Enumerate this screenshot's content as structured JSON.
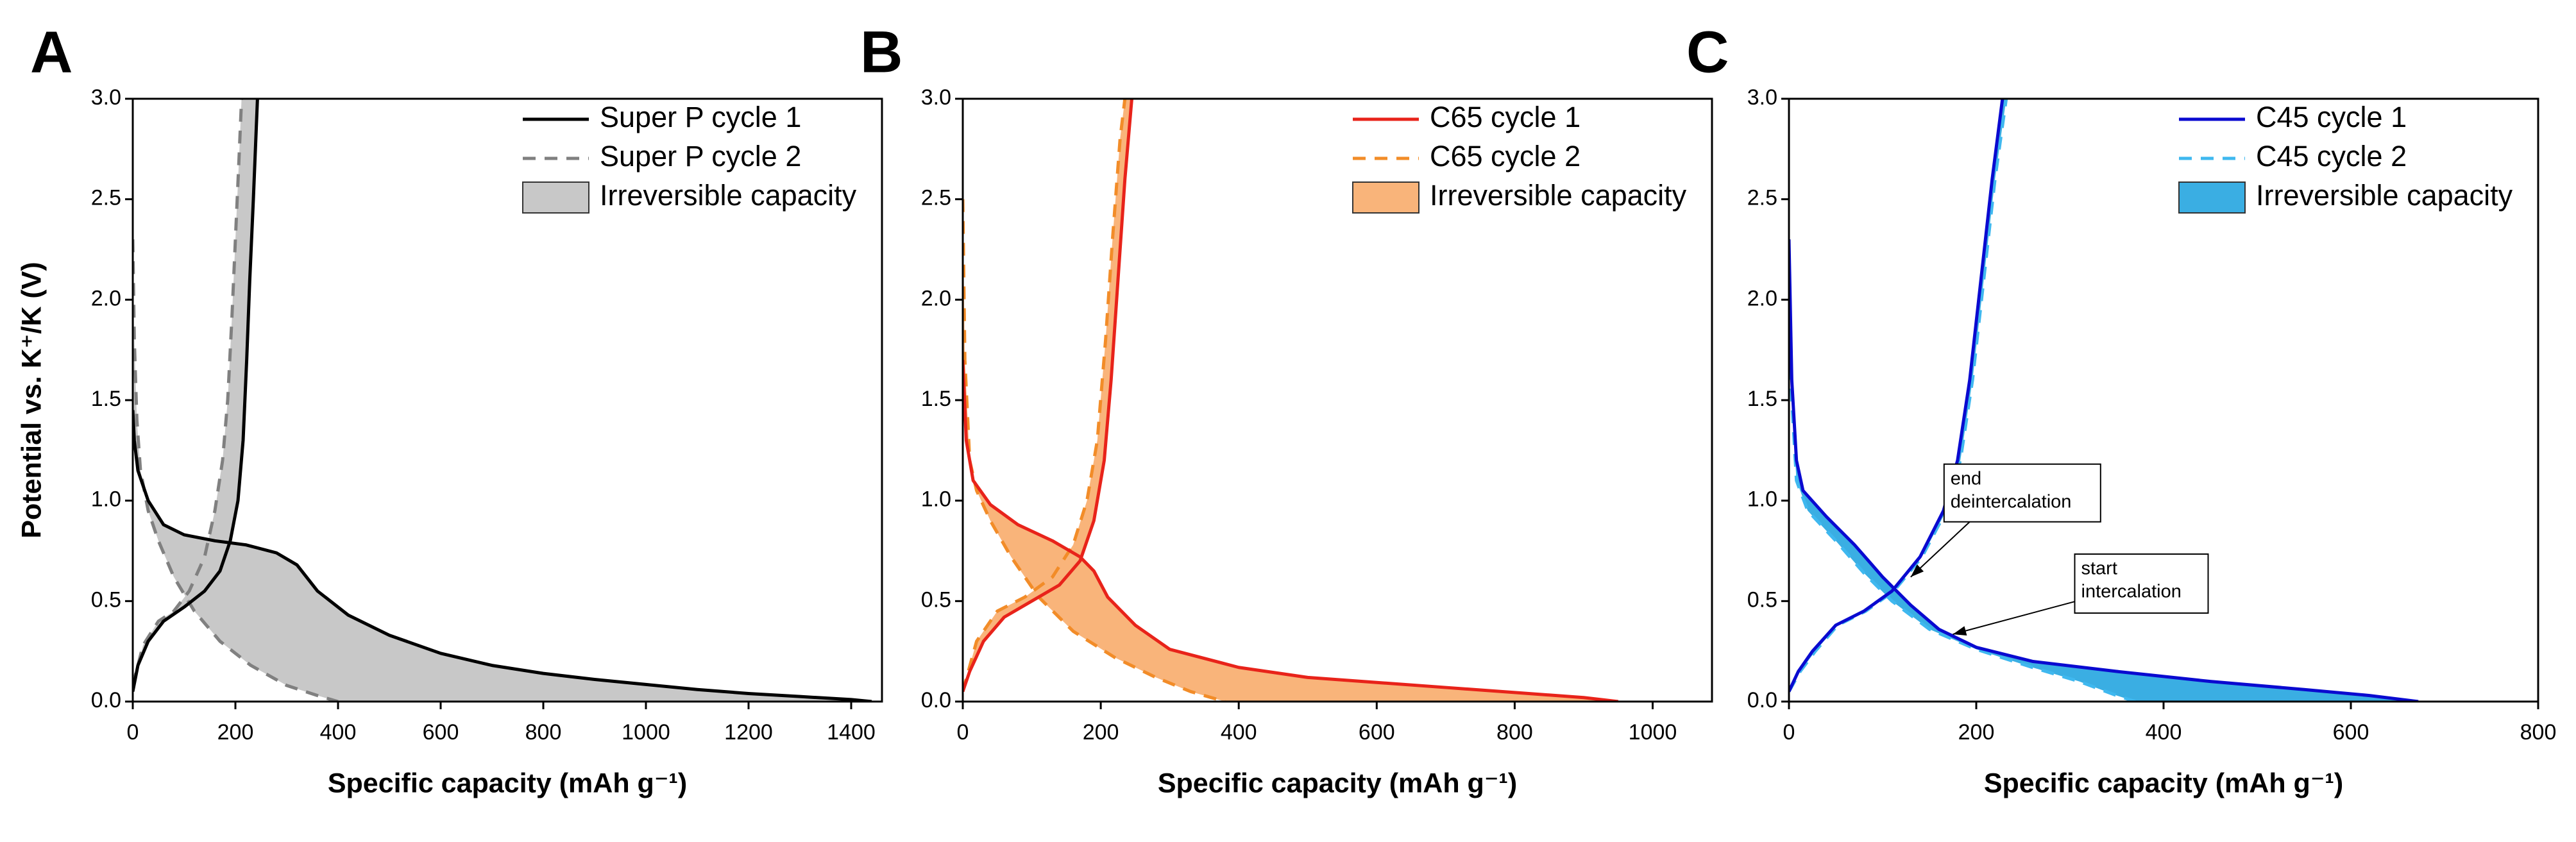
{
  "chart_data": [
    {
      "type": "line",
      "panel": "A",
      "ylabel": "Potential vs. K⁺/K (V)",
      "xlabel": "Specific capacity (mAh g⁻¹)",
      "xlim": [
        0,
        1460
      ],
      "xticks": [
        0,
        200,
        400,
        600,
        800,
        1000,
        1200,
        1400
      ],
      "ylim": [
        0,
        3
      ],
      "yticks": [
        {
          "value": 0,
          "label": "0.0"
        },
        0.5,
        {
          "value": 1,
          "label": "1.0"
        },
        1.5,
        {
          "value": 2,
          "label": "2.0"
        },
        2.5,
        {
          "value": 3,
          "label": "3.0"
        }
      ],
      "series": [
        {
          "name": "Super P cycle 1",
          "color": "#000000",
          "dashed": false,
          "x": [
            0,
            3,
            10,
            30,
            60,
            100,
            160,
            220,
            280,
            320,
            360,
            420,
            500,
            600,
            700,
            800,
            900,
            1000,
            1100,
            1200,
            1300,
            1400,
            1440,
            null,
            0,
            10,
            30,
            60,
            100,
            140,
            170,
            190,
            205,
            215,
            222,
            228,
            235,
            243
          ],
          "values": [
            1.45,
            1.3,
            1.15,
            1.0,
            0.88,
            0.83,
            0.8,
            0.78,
            0.74,
            0.68,
            0.55,
            0.43,
            0.33,
            0.24,
            0.18,
            0.14,
            0.11,
            0.085,
            0.06,
            0.04,
            0.025,
            0.01,
            0.0,
            null,
            0.05,
            0.18,
            0.3,
            0.4,
            0.47,
            0.55,
            0.65,
            0.8,
            1.0,
            1.3,
            1.7,
            2.1,
            2.5,
            3.0
          ]
        },
        {
          "name": "Super P cycle 2",
          "color": "#808080",
          "dashed": true,
          "x": [
            0,
            3,
            8,
            15,
            30,
            50,
            80,
            120,
            170,
            230,
            300,
            360,
            400,
            null,
            0,
            20,
            50,
            80,
            110,
            140,
            160,
            175,
            185,
            193,
            200,
            207,
            212
          ],
          "values": [
            2.3,
            1.8,
            1.4,
            1.15,
            0.95,
            0.8,
            0.62,
            0.45,
            0.3,
            0.18,
            0.08,
            0.03,
            0.0,
            null,
            0.08,
            0.28,
            0.4,
            0.45,
            0.55,
            0.72,
            0.95,
            1.2,
            1.5,
            1.9,
            2.3,
            2.7,
            3.0
          ]
        }
      ],
      "fill": {
        "name": "Irreversible capacity",
        "color": "#c8c8c8"
      }
    },
    {
      "type": "line",
      "panel": "B",
      "xlabel": "Specific capacity (mAh g⁻¹)",
      "xlim": [
        0,
        1086
      ],
      "xticks": [
        0,
        200,
        400,
        600,
        800,
        1000
      ],
      "ylim": [
        0,
        3
      ],
      "yticks": [
        {
          "value": 0,
          "label": "0.0"
        },
        0.5,
        {
          "value": 1,
          "label": "1.0"
        },
        1.5,
        {
          "value": 2,
          "label": "2.0"
        },
        2.5,
        {
          "value": 3,
          "label": "3.0"
        }
      ],
      "series": [
        {
          "name": "C65 cycle 1",
          "color": "#e8231a",
          "dashed": false,
          "x": [
            0,
            5,
            15,
            40,
            80,
            130,
            170,
            190,
            210,
            250,
            300,
            400,
            500,
            600,
            700,
            800,
            900,
            950,
            null,
            0,
            10,
            30,
            60,
            100,
            140,
            170,
            190,
            205,
            215,
            225,
            235,
            245
          ],
          "values": [
            1.7,
            1.3,
            1.1,
            0.98,
            0.88,
            0.8,
            0.72,
            0.65,
            0.52,
            0.38,
            0.26,
            0.17,
            0.12,
            0.095,
            0.07,
            0.045,
            0.02,
            0.0,
            null,
            0.05,
            0.15,
            0.3,
            0.42,
            0.5,
            0.58,
            0.7,
            0.9,
            1.2,
            1.6,
            2.1,
            2.6,
            3.0
          ]
        },
        {
          "name": "C65 cycle 2",
          "color": "#f28c28",
          "dashed": true,
          "x": [
            0,
            3,
            10,
            20,
            40,
            70,
            110,
            160,
            220,
            280,
            330,
            380,
            null,
            0,
            20,
            50,
            90,
            130,
            160,
            180,
            195,
            207,
            217,
            228,
            235
          ],
          "values": [
            2.5,
            1.7,
            1.2,
            1.05,
            0.9,
            0.72,
            0.52,
            0.35,
            0.22,
            0.12,
            0.05,
            0.0,
            null,
            0.05,
            0.3,
            0.45,
            0.52,
            0.62,
            0.78,
            1.0,
            1.3,
            1.8,
            2.3,
            2.8,
            3.0
          ]
        }
      ],
      "fill": {
        "name": "Irreversible capacity",
        "color": "#f9b47a"
      }
    },
    {
      "type": "line",
      "panel": "C",
      "xlabel": "Specific capacity (mAh g⁻¹)",
      "xlim": [
        0,
        800
      ],
      "xticks": [
        0,
        200,
        400,
        600,
        800
      ],
      "ylim": [
        0,
        3
      ],
      "yticks": [
        {
          "value": 0,
          "label": "0.0"
        },
        0.5,
        {
          "value": 1,
          "label": "1.0"
        },
        1.5,
        {
          "value": 2,
          "label": "2.0"
        },
        2.5,
        {
          "value": 3,
          "label": "3.0"
        }
      ],
      "series": [
        {
          "name": "C45 cycle 1",
          "color": "#0a0ad0",
          "dashed": false,
          "x": [
            0,
            3,
            8,
            15,
            40,
            70,
            100,
            130,
            160,
            200,
            260,
            350,
            450,
            550,
            620,
            672,
            null,
            0,
            10,
            25,
            50,
            80,
            110,
            140,
            165,
            180,
            193,
            205,
            217,
            228
          ],
          "values": [
            2.3,
            1.6,
            1.2,
            1.05,
            0.92,
            0.78,
            0.62,
            0.48,
            0.36,
            0.27,
            0.2,
            0.15,
            0.1,
            0.06,
            0.03,
            0.0,
            null,
            0.05,
            0.15,
            0.25,
            0.38,
            0.45,
            0.55,
            0.72,
            0.95,
            1.2,
            1.6,
            2.1,
            2.6,
            3.0
          ]
        },
        {
          "name": "C45 cycle 2",
          "color": "#3fb8ef",
          "dashed": true,
          "x": [
            0,
            3,
            8,
            20,
            50,
            80,
            110,
            150,
            200,
            260,
            310,
            350,
            370,
            null,
            0,
            12,
            28,
            52,
            82,
            112,
            142,
            168,
            183,
            196,
            208,
            220,
            232
          ],
          "values": [
            2.1,
            1.5,
            1.1,
            0.95,
            0.8,
            0.64,
            0.5,
            0.36,
            0.26,
            0.17,
            0.1,
            0.03,
            0.0,
            null,
            0.05,
            0.15,
            0.25,
            0.38,
            0.45,
            0.55,
            0.72,
            0.95,
            1.2,
            1.6,
            2.1,
            2.6,
            3.0
          ]
        }
      ],
      "fill": {
        "name": "Irreversible capacity",
        "color": "#3aaee3"
      },
      "annotations": [
        {
          "lines": [
            "end",
            "deintercalation"
          ],
          "x": 130,
          "y": 0.62
        },
        {
          "lines": [
            "start",
            "intercalation"
          ],
          "x": 175,
          "y": 0.335
        }
      ]
    }
  ]
}
